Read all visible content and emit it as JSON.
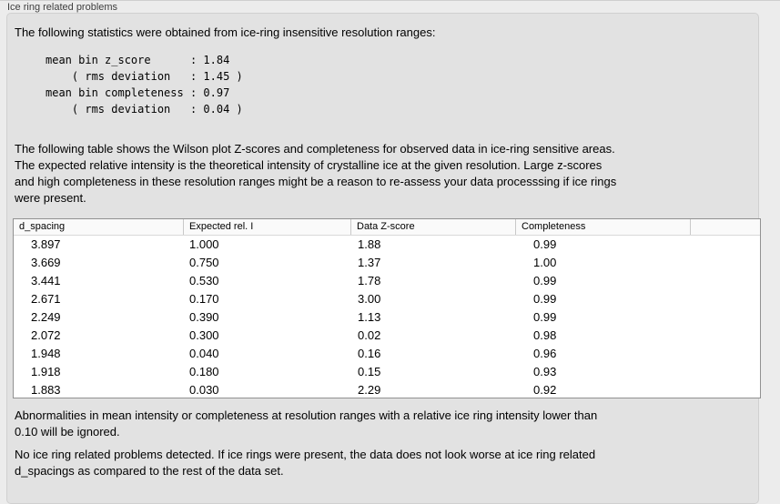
{
  "panel": {
    "title": "Ice ring related problems"
  },
  "colors": {
    "window_bg": "#ececec",
    "groupbox_bg": "#e2e2e2",
    "groupbox_border": "#d0d0d0",
    "table_border": "#919191",
    "table_header_bg": "#fafafa",
    "text": "#000000",
    "label_text": "#3e3e3e"
  },
  "intro_paragraph": "The following statistics were obtained from ice-ring insensitive resolution ranges:",
  "stats_block": "mean bin z_score      : 1.84\n    ( rms deviation   : 1.45 )\nmean bin completeness : 0.97\n    ( rms deviation   : 0.04 )",
  "stats": {
    "mean_bin_z_score": "1.84",
    "mean_bin_z_score_rms_deviation": "1.45",
    "mean_bin_completeness": "0.97",
    "mean_bin_completeness_rms_deviation": "0.04"
  },
  "table_description": "The following table shows the Wilson plot Z-scores and completeness for observed data in ice-ring sensitive areas.\nThe expected relative intensity is the theoretical intensity of crystalline ice at the given resolution. Large z-scores\nand high completeness in these resolution ranges might be a reason to re-assess your data processsing if ice rings\nwere present.",
  "table": {
    "headers": [
      "d_spacing",
      "Expected rel. I",
      "Data Z-score",
      "Completeness",
      ""
    ],
    "rows": [
      [
        "3.897",
        "1.000",
        "1.88",
        "0.99"
      ],
      [
        "3.669",
        "0.750",
        "1.37",
        "1.00"
      ],
      [
        "3.441",
        "0.530",
        "1.78",
        "0.99"
      ],
      [
        "2.671",
        "0.170",
        "3.00",
        "0.99"
      ],
      [
        "2.249",
        "0.390",
        "1.13",
        "0.99"
      ],
      [
        "2.072",
        "0.300",
        "0.02",
        "0.98"
      ],
      [
        "1.948",
        "0.040",
        "0.16",
        "0.96"
      ],
      [
        "1.918",
        "0.180",
        "0.15",
        "0.93"
      ],
      [
        "1.883",
        "0.030",
        "2.29",
        "0.92"
      ]
    ]
  },
  "ignore_note": "Abnormalities in mean intensity or completeness at resolution ranges with a relative ice ring intensity lower than\n0.10 will be ignored.",
  "conclusion": "No ice ring related problems detected. If ice rings were present, the data does not look worse at ice ring related\nd_spacings as compared to the rest of the data set."
}
